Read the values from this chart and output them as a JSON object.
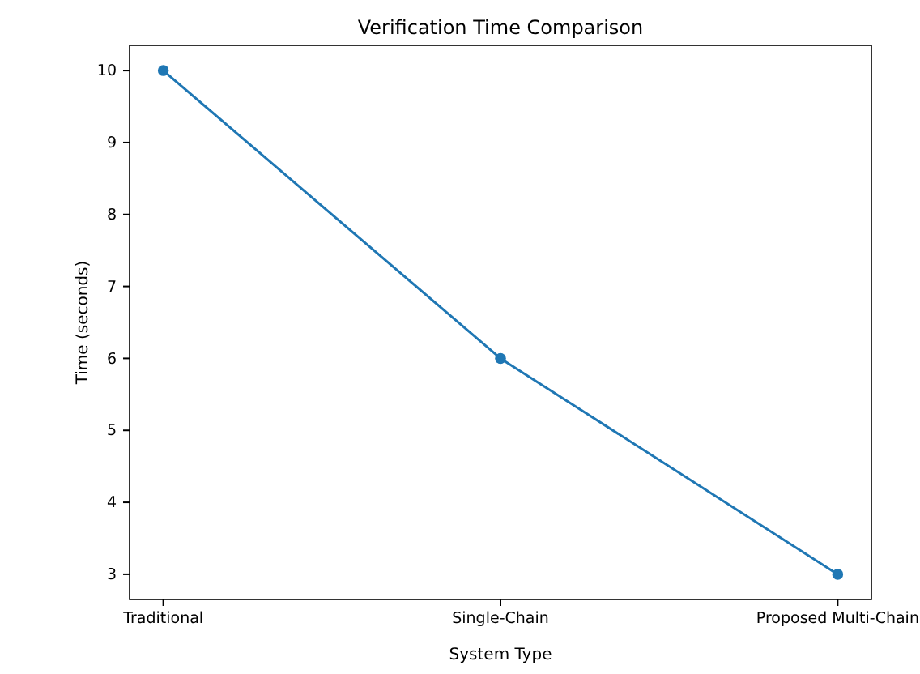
{
  "chart_data": {
    "type": "line",
    "title": "Verification Time Comparison",
    "xlabel": "System Type",
    "ylabel": "Time (seconds)",
    "categories": [
      "Traditional",
      "Single-Chain",
      "Proposed Multi-Chain"
    ],
    "series": [
      {
        "color": "#1f77b4",
        "values": [
          10,
          6,
          3
        ]
      }
    ],
    "marker": "circle",
    "line_style": "solid",
    "ylim": [
      2.65,
      10.35
    ],
    "yticks": [
      3,
      4,
      5,
      6,
      7,
      8,
      9,
      10
    ],
    "grid": false
  }
}
